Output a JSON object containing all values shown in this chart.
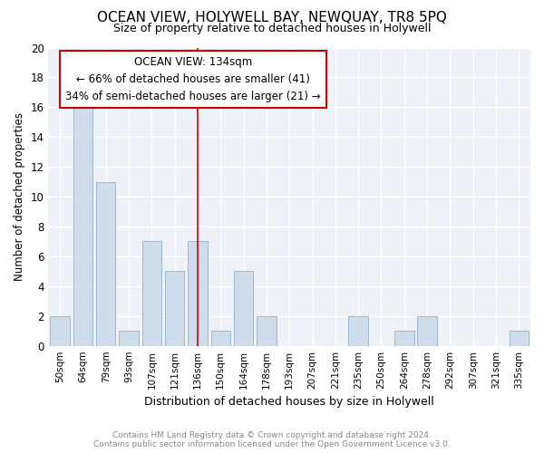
{
  "title": "OCEAN VIEW, HOLYWELL BAY, NEWQUAY, TR8 5PQ",
  "subtitle": "Size of property relative to detached houses in Holywell",
  "xlabel": "Distribution of detached houses by size in Holywell",
  "ylabel": "Number of detached properties",
  "categories": [
    "50sqm",
    "64sqm",
    "79sqm",
    "93sqm",
    "107sqm",
    "121sqm",
    "136sqm",
    "150sqm",
    "164sqm",
    "178sqm",
    "193sqm",
    "207sqm",
    "221sqm",
    "235sqm",
    "250sqm",
    "264sqm",
    "278sqm",
    "292sqm",
    "307sqm",
    "321sqm",
    "335sqm"
  ],
  "values": [
    2,
    16,
    11,
    1,
    7,
    5,
    7,
    1,
    5,
    2,
    0,
    0,
    0,
    2,
    0,
    1,
    2,
    0,
    0,
    0,
    1
  ],
  "bar_color": "#cfdcec",
  "bar_edge_color": "#9ab8d0",
  "marker_index": 6,
  "marker_color": "#cc0000",
  "annotation_line1": "OCEAN VIEW: 134sqm",
  "annotation_line2": "← 66% of detached houses are smaller (41)",
  "annotation_line3": "34% of semi-detached houses are larger (21) →",
  "ylim": [
    0,
    20
  ],
  "yticks": [
    0,
    2,
    4,
    6,
    8,
    10,
    12,
    14,
    16,
    18,
    20
  ],
  "background_color": "#eef2f8",
  "grid_color": "#ffffff",
  "footer1": "Contains HM Land Registry data © Crown copyright and database right 2024.",
  "footer2": "Contains public sector information licensed under the Open Government Licence v3.0."
}
